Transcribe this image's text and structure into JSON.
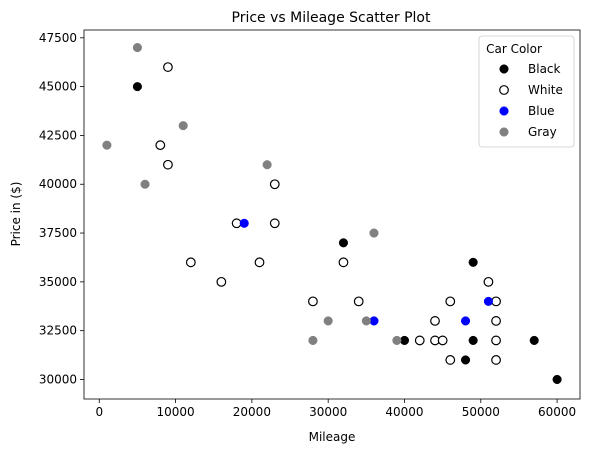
{
  "chart_data": {
    "type": "scatter",
    "title": "Price vs Mileage Scatter Plot",
    "xlabel": "Mileage",
    "ylabel": "Price in ($)",
    "xlim": [
      -2000,
      63000
    ],
    "ylim": [
      29000,
      47900
    ],
    "xticks": [
      0,
      10000,
      20000,
      30000,
      40000,
      50000,
      60000
    ],
    "yticks": [
      30000,
      32500,
      35000,
      37500,
      40000,
      42500,
      45000,
      47500
    ],
    "grid": false,
    "legend": {
      "title": "Car Color",
      "placement": "top-right"
    },
    "series": [
      {
        "name": "Black",
        "color": "#000000",
        "marker": "filled-circle",
        "points": [
          {
            "x": 5000,
            "y": 45000
          },
          {
            "x": 32000,
            "y": 37000
          },
          {
            "x": 49000,
            "y": 36000
          },
          {
            "x": 40000,
            "y": 32000
          },
          {
            "x": 48000,
            "y": 31000
          },
          {
            "x": 49000,
            "y": 32000
          },
          {
            "x": 57000,
            "y": 32000
          },
          {
            "x": 60000,
            "y": 30000
          }
        ]
      },
      {
        "name": "White",
        "color": "#000000",
        "marker": "hollow-circle",
        "points": [
          {
            "x": 9000,
            "y": 46000
          },
          {
            "x": 8000,
            "y": 42000
          },
          {
            "x": 9000,
            "y": 41000
          },
          {
            "x": 23000,
            "y": 40000
          },
          {
            "x": 18000,
            "y": 38000
          },
          {
            "x": 23000,
            "y": 38000
          },
          {
            "x": 12000,
            "y": 36000
          },
          {
            "x": 21000,
            "y": 36000
          },
          {
            "x": 16000,
            "y": 35000
          },
          {
            "x": 28000,
            "y": 34000
          },
          {
            "x": 32000,
            "y": 36000
          },
          {
            "x": 34000,
            "y": 34000
          },
          {
            "x": 42000,
            "y": 32000
          },
          {
            "x": 44000,
            "y": 33000
          },
          {
            "x": 44000,
            "y": 32000
          },
          {
            "x": 45000,
            "y": 32000
          },
          {
            "x": 46000,
            "y": 34000
          },
          {
            "x": 46000,
            "y": 31000
          },
          {
            "x": 51000,
            "y": 35000
          },
          {
            "x": 52000,
            "y": 34000
          },
          {
            "x": 52000,
            "y": 33000
          },
          {
            "x": 52000,
            "y": 32000
          },
          {
            "x": 52000,
            "y": 31000
          }
        ]
      },
      {
        "name": "Blue",
        "color": "#0000ff",
        "marker": "filled-circle",
        "points": [
          {
            "x": 19000,
            "y": 38000
          },
          {
            "x": 36000,
            "y": 33000
          },
          {
            "x": 48000,
            "y": 33000
          },
          {
            "x": 51000,
            "y": 34000
          }
        ]
      },
      {
        "name": "Gray",
        "color": "#808080",
        "marker": "filled-circle",
        "points": [
          {
            "x": 5000,
            "y": 47000
          },
          {
            "x": 11000,
            "y": 43000
          },
          {
            "x": 1000,
            "y": 42000
          },
          {
            "x": 6000,
            "y": 40000
          },
          {
            "x": 22000,
            "y": 41000
          },
          {
            "x": 36000,
            "y": 37500
          },
          {
            "x": 30000,
            "y": 33000
          },
          {
            "x": 28000,
            "y": 32000
          },
          {
            "x": 35000,
            "y": 33000
          },
          {
            "x": 39000,
            "y": 32000
          }
        ]
      }
    ]
  }
}
